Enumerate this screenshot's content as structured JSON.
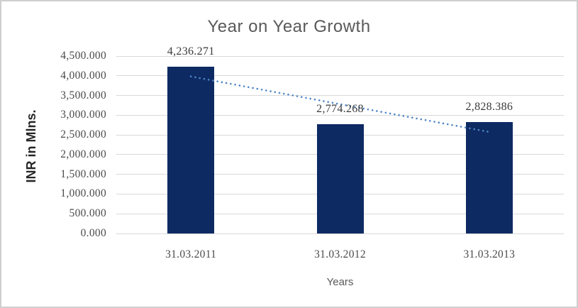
{
  "chart_data": {
    "type": "bar",
    "title": "Year on Year Growth",
    "xlabel": "Years",
    "ylabel": "INR in Mlns.",
    "categories": [
      "31.03.2011",
      "31.03.2012",
      "31.03.2013"
    ],
    "values": [
      4236.271,
      2774.268,
      2828.386
    ],
    "data_labels": [
      "4,236.271",
      "2,774.268",
      "2,828.386"
    ],
    "y_ticks": [
      "4,500.000",
      "4,000.000",
      "3,500.000",
      "3,000.000",
      "2,500.000",
      "2,000.000",
      "1,500.000",
      "1,000.000",
      "500.000",
      "0.000"
    ],
    "ylim": [
      0,
      4500
    ],
    "grid": true,
    "legend": "none",
    "trendline": {
      "type": "linear",
      "style": "dotted",
      "endpoint_values": [
        3983.6,
        2575.7
      ]
    },
    "colors": {
      "bar": "#0D2A63",
      "trendline": "#4E86C6",
      "gridline": "#D9D9D9",
      "title_text": "#595959",
      "tick_text": "#4A4A4A",
      "data_label_text": "#3A3A3A",
      "axis_title_text": "#262626",
      "frame_border": "#CFCFCF"
    }
  }
}
